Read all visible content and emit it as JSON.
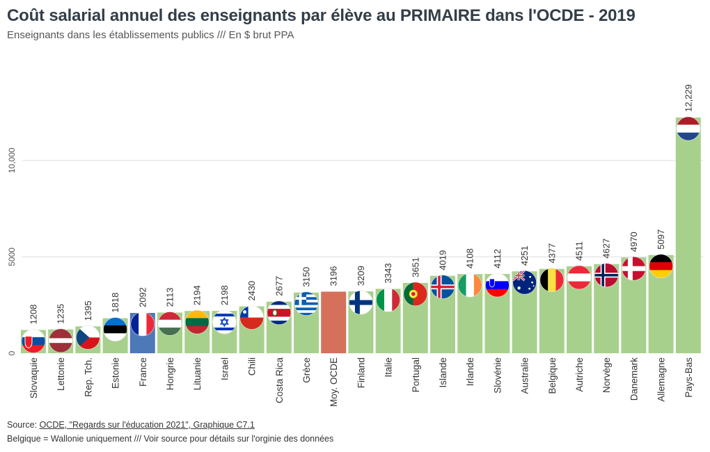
{
  "header": {
    "title": "Coût salarial annuel des enseignants par élève au PRIMAIRE dans l'OCDE - 2019",
    "subtitle": "Enseignants dans les établissements publics /// En $ brut PPA"
  },
  "footer": {
    "source_prefix": "Source: ",
    "source_link": "OCDE, \"Regards sur l'éducation 2021\", Graphique C7.1",
    "note": "Belgique = Wallonie uniquement /// Voir source pour détails sur l'orginie des données"
  },
  "colors": {
    "bar_default": "#a8d08d",
    "bar_france": "#4e79b8",
    "bar_oecd": "#d5705a",
    "gridline": "#dddddd",
    "text": "#333333"
  },
  "chart_data": {
    "type": "bar",
    "categories": [
      "Slovaquie",
      "Lettonie",
      "Rep. Tch.",
      "Estonie",
      "France",
      "Hongrie",
      "Lituanie",
      "Israel",
      "Chili",
      "Costa Rica",
      "Grèce",
      "Moy. OCDE",
      "Finland",
      "Italie",
      "Portugal",
      "Islande",
      "Irlande",
      "Slovénie",
      "Australie",
      "Belgique",
      "Autriche",
      "Norvège",
      "Danemark",
      "Allemagne",
      "Pays-Bas"
    ],
    "values": [
      1208,
      1235,
      1395,
      1818,
      2092,
      2113,
      2194,
      2198,
      2430,
      2677,
      3150,
      3196,
      3209,
      3343,
      3651,
      4019,
      4108,
      4112,
      4251,
      4377,
      4511,
      4627,
      4970,
      5097,
      12229
    ],
    "value_labels": [
      "1208",
      "1235",
      "1395",
      "1818",
      "2092",
      "2113",
      "2194",
      "2198",
      "2430",
      "2677",
      "3150",
      "3196",
      "3209",
      "3343",
      "3651",
      "4019",
      "4108",
      "4112",
      "4251",
      "4377",
      "4511",
      "4627",
      "4970",
      "5097",
      "12,229"
    ],
    "flag_icons": [
      "flag-slovakia",
      "flag-latvia",
      "flag-czechia",
      "flag-estonia",
      "flag-france",
      "flag-hungary",
      "flag-lithuania",
      "flag-israel",
      "flag-chile",
      "flag-costa-rica",
      "flag-greece",
      "",
      "flag-finland",
      "flag-italy",
      "flag-portugal",
      "flag-iceland",
      "flag-ireland",
      "flag-slovenia",
      "flag-australia",
      "flag-belgium",
      "flag-austria",
      "flag-norway",
      "flag-denmark",
      "flag-germany",
      "flag-netherlands"
    ],
    "highlight": {
      "France": "#4e79b8",
      "Moy. OCDE": "#d5705a"
    },
    "yticks": [
      0,
      5000,
      10000
    ],
    "ytick_labels": [
      "0",
      "5000",
      "10,000"
    ],
    "ylim": [
      0,
      12229
    ],
    "grid": true,
    "legend": "none"
  }
}
